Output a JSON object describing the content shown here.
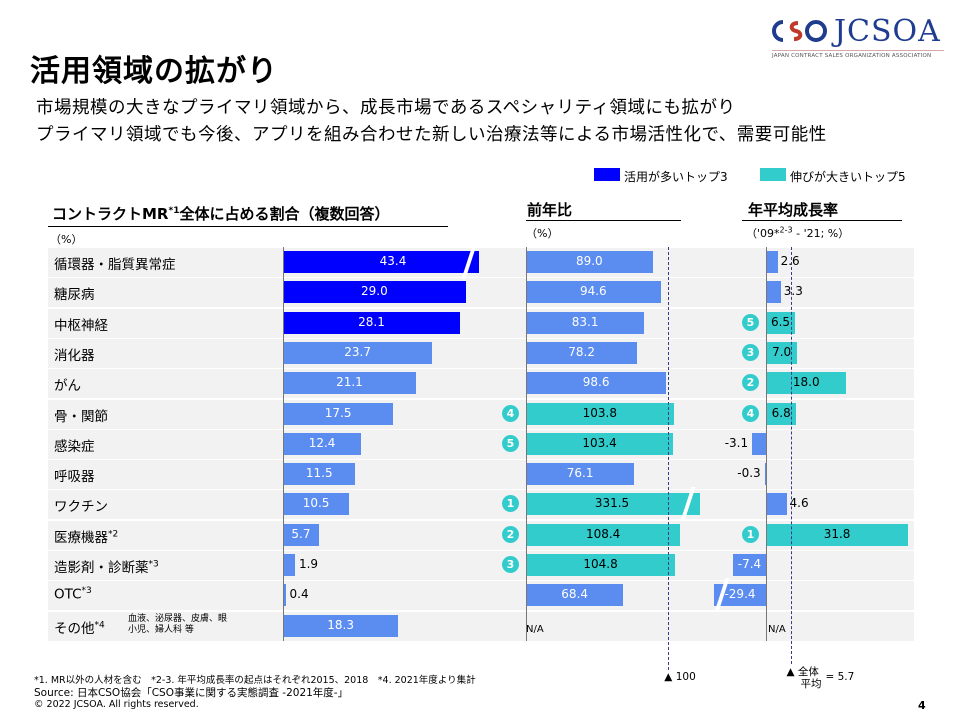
{
  "page": {
    "title": "活用領域の拡がり",
    "subtitle_line1": "市場規模の大きなプライマリ領域から、成長市場であるスペシャリティ領域にも拡がり",
    "subtitle_line2": "プライマリ領域でも今後、アプリを組み合わせた新しい治療法等による市場活性化で、需要可能性",
    "logo_text": "JCSOA",
    "logo_sub": "JAPAN CONTRACT SALES ORGANIZATION ASSOCIATION",
    "page_number": "4"
  },
  "legend": {
    "top3_label": "活用が多いトップ3",
    "top5_label": "伸びが大きいトップ5",
    "colors": {
      "top3": "#0000ff",
      "top5": "#33cccc",
      "base": "#5b8cf0"
    }
  },
  "headers": {
    "share_prefix": "コントラクトMR",
    "share_sup": "*1",
    "share_suffix": "全体に占める割合（複数回答）",
    "share_unit": "（%）",
    "yoy": "前年比",
    "yoy_unit": "（%）",
    "cagr": "年平均成長率",
    "cagr_unit_a": "（'09*",
    "cagr_unit_sup": "2-3",
    "cagr_unit_b": " - '21; %）"
  },
  "categories": [
    {
      "label": "循環器・脂質異常症",
      "sup": "",
      "note": ""
    },
    {
      "label": "糖尿病",
      "sup": "",
      "note": ""
    },
    {
      "label": "中枢神経",
      "sup": "",
      "note": ""
    },
    {
      "label": "消化器",
      "sup": "",
      "note": ""
    },
    {
      "label": "がん",
      "sup": "",
      "note": ""
    },
    {
      "label": "骨・関節",
      "sup": "",
      "note": ""
    },
    {
      "label": "感染症",
      "sup": "",
      "note": ""
    },
    {
      "label": "呼吸器",
      "sup": "",
      "note": ""
    },
    {
      "label": "ワクチン",
      "sup": "",
      "note": ""
    },
    {
      "label": "医療機器",
      "sup": "*2",
      "note": ""
    },
    {
      "label": "造影剤・診断薬",
      "sup": "*3",
      "note": ""
    },
    {
      "label": "OTC",
      "sup": "*3",
      "note": ""
    },
    {
      "label": "その他",
      "sup": "*4",
      "note_line1": "血液、泌尿器、皮膚、眼",
      "note_line2": "小児、婦人科 等"
    }
  ],
  "chart_data": [
    {
      "type": "bar",
      "title": "コントラクトMR全体に占める割合（複数回答）",
      "unit": "%",
      "categories": [
        "循環器・脂質異常症",
        "糖尿病",
        "中枢神経",
        "消化器",
        "がん",
        "骨・関節",
        "感染症",
        "呼吸器",
        "ワクチン",
        "医療機器",
        "造影剤・診断薬",
        "OTC",
        "その他"
      ],
      "values": [
        43.4,
        29.0,
        28.1,
        23.7,
        21.1,
        17.5,
        12.4,
        11.5,
        10.5,
        5.7,
        1.9,
        0.4,
        18.3
      ],
      "labels": [
        "43.4",
        "29.0",
        "28.1",
        "23.7",
        "21.1",
        "17.5",
        "12.4",
        "11.5",
        "10.5",
        "5.7",
        "1.9",
        "0.4",
        "18.3"
      ],
      "highlight": [
        "top3",
        "top3",
        "top3",
        "",
        "",
        "",
        "",
        "",
        "",
        "",
        "",
        "",
        ""
      ],
      "axis_break": [
        true,
        false,
        false,
        false,
        false,
        false,
        false,
        false,
        false,
        false,
        false,
        false,
        false
      ]
    },
    {
      "type": "bar",
      "title": "前年比",
      "unit": "%",
      "reference_line": 100,
      "reference_label": "▲ 100",
      "values": [
        89.0,
        94.6,
        83.1,
        78.2,
        98.6,
        103.8,
        103.4,
        76.1,
        331.5,
        108.4,
        104.8,
        68.4,
        null
      ],
      "labels": [
        "89.0",
        "94.6",
        "83.1",
        "78.2",
        "98.6",
        "103.8",
        "103.4",
        "76.1",
        "331.5",
        "108.4",
        "104.8",
        "68.4",
        "N/A"
      ],
      "rank": [
        "",
        "",
        "",
        "",
        "",
        "4",
        "5",
        "",
        "1",
        "2",
        "3",
        "",
        ""
      ],
      "axis_break": [
        false,
        false,
        false,
        false,
        false,
        false,
        false,
        false,
        true,
        false,
        false,
        false,
        false
      ]
    },
    {
      "type": "bar",
      "title": "年平均成長率",
      "unit": "%",
      "reference_line": 5.7,
      "reference_label_a": "▲ 全体",
      "reference_label_b": "平均",
      "reference_label_c": "= 5.7",
      "values": [
        2.6,
        3.3,
        6.5,
        7.0,
        18.0,
        6.8,
        -3.1,
        -0.3,
        4.6,
        31.8,
        -7.4,
        -29.4,
        null
      ],
      "labels": [
        "2.6",
        "3.3",
        "6.5",
        "7.0",
        "18.0",
        "6.8",
        "-3.1",
        "-0.3",
        "4.6",
        "31.8",
        "-7.4",
        "-29.4",
        "N/A"
      ],
      "rank": [
        "",
        "",
        "5",
        "3",
        "2",
        "4",
        "",
        "",
        "",
        "1",
        "",
        "",
        ""
      ],
      "axis_break": [
        false,
        false,
        false,
        false,
        false,
        false,
        false,
        false,
        false,
        false,
        false,
        true,
        false
      ]
    }
  ],
  "footnotes": {
    "line1": "*1. MR以外の人材を含む　*2-3. 年平均成長率の起点はそれぞれ2015、2018　*4. 2021年度より集計",
    "line2": "Source: 日本CSO協会「CSO事業に関する実態調査 -2021年度-」",
    "line3": "© 2022  JCSOA.  All rights reserved."
  }
}
